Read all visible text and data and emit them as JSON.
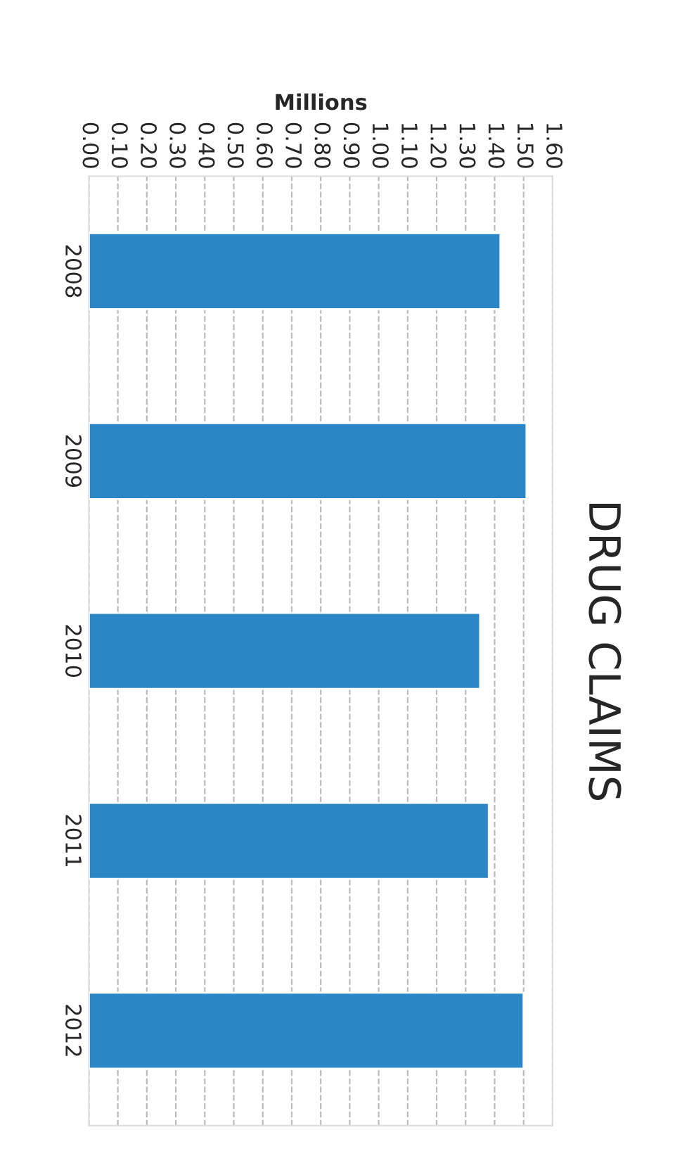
{
  "chart_data": {
    "type": "bar",
    "orientation": "horizontal",
    "title": "DRUG CLAIMS",
    "xlabel": "Millions",
    "categories": [
      "2008",
      "2009",
      "2010",
      "2011",
      "2012"
    ],
    "values": [
      1.42,
      1.51,
      1.35,
      1.38,
      1.5
    ],
    "color": "#2a86c5",
    "xlim": [
      0,
      1.6
    ],
    "xticks": [
      {
        "value": 0,
        "label": "0.00"
      },
      {
        "value": 0.1,
        "label": "0.10"
      },
      {
        "value": 0.2,
        "label": "0.20"
      },
      {
        "value": 0.3,
        "label": "0.30"
      },
      {
        "value": 0.4,
        "label": "0.40"
      },
      {
        "value": 0.5,
        "label": "0.50"
      },
      {
        "value": 0.6,
        "label": "0.60"
      },
      {
        "value": 0.7,
        "label": "0.70"
      },
      {
        "value": 0.8,
        "label": "0.80"
      },
      {
        "value": 0.9,
        "label": "0.90"
      },
      {
        "value": 1.0,
        "label": "1.00"
      },
      {
        "value": 1.1,
        "label": "1.10"
      },
      {
        "value": 1.2,
        "label": "1.20"
      },
      {
        "value": 1.3,
        "label": "1.30"
      },
      {
        "value": 1.4,
        "label": "1.40"
      },
      {
        "value": 1.5,
        "label": "1.50"
      },
      {
        "value": 1.6,
        "label": "1.60"
      }
    ],
    "grid": "x"
  }
}
